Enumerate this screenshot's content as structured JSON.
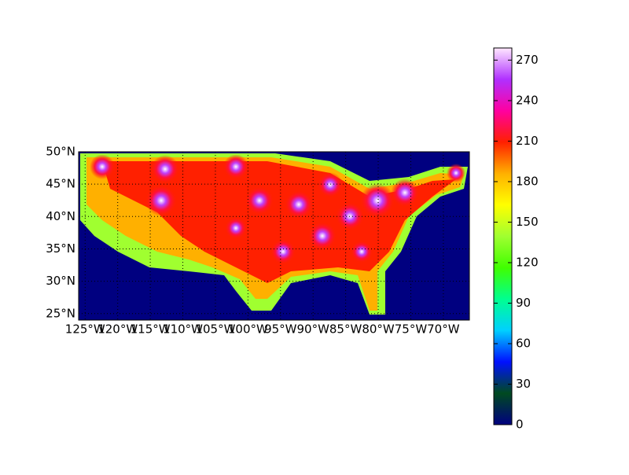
{
  "chart_data": {
    "type": "map",
    "xlim": [
      -126,
      -66
    ],
    "ylim": [
      24,
      50
    ],
    "xticks": [
      {
        "value": -125,
        "label": "125°W"
      },
      {
        "value": -120,
        "label": "120°W"
      },
      {
        "value": -115,
        "label": "115°W"
      },
      {
        "value": -110,
        "label": "110°W"
      },
      {
        "value": -105,
        "label": "105°W"
      },
      {
        "value": -100,
        "label": "100°W"
      },
      {
        "value": -95,
        "label": "95°W"
      },
      {
        "value": -90,
        "label": "90°W"
      },
      {
        "value": -85,
        "label": "85°W"
      },
      {
        "value": -80,
        "label": "80°W"
      },
      {
        "value": -75,
        "label": "75°W"
      },
      {
        "value": -70,
        "label": "70°W"
      }
    ],
    "yticks": [
      {
        "value": 25,
        "label": "25°N"
      },
      {
        "value": 30,
        "label": "30°N"
      },
      {
        "value": 35,
        "label": "35°N"
      },
      {
        "value": 40,
        "label": "40°N"
      },
      {
        "value": 45,
        "label": "45°N"
      },
      {
        "value": 50,
        "label": "50°N"
      }
    ],
    "grid": true,
    "colorbar": {
      "lim": [
        0,
        279
      ],
      "ticks": [
        0,
        30,
        60,
        90,
        120,
        150,
        180,
        210,
        240,
        270
      ],
      "colors": [
        "#000080",
        "#004a20",
        "#0010ff",
        "#00d0ff",
        "#00ff90",
        "#40ff00",
        "#a0ff30",
        "#ffff00",
        "#ffb000",
        "#ff2000",
        "#ff00a0",
        "#b030ff",
        "#ffe8ff"
      ]
    }
  }
}
